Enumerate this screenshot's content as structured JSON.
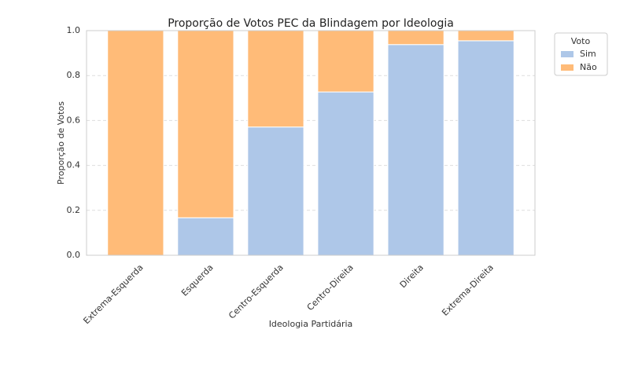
{
  "chart_data": {
    "type": "stacked_bar",
    "title": "Proporção de Votos PEC da Blindagem por Ideologia",
    "x_label": "Ideologia Partidária",
    "y_label": "Proporção de Votos",
    "categories": [
      "Extrema-Esquerda",
      "Esquerda",
      "Centro-Esquerda",
      "Centro-Direita",
      "Direita",
      "Extrema-Direita"
    ],
    "series": [
      {
        "name": "Sim",
        "color": "#aec7e8",
        "values": [
          0,
          0.167,
          0.571,
          0.727,
          0.938,
          0.955
        ]
      },
      {
        "name": "Não",
        "color": "#ffbb78",
        "values": [
          1,
          0.833,
          0.429,
          0.273,
          0.062,
          0.045
        ]
      }
    ],
    "legend_title": "Voto",
    "legend": "outside right",
    "ylim": [
      0,
      1
    ],
    "yticks": [
      {
        "value": 0,
        "label": "0.0"
      },
      0.2,
      0.4,
      0.6,
      0.8,
      {
        "value": 1,
        "label": "1.0"
      }
    ],
    "grid": true
  }
}
